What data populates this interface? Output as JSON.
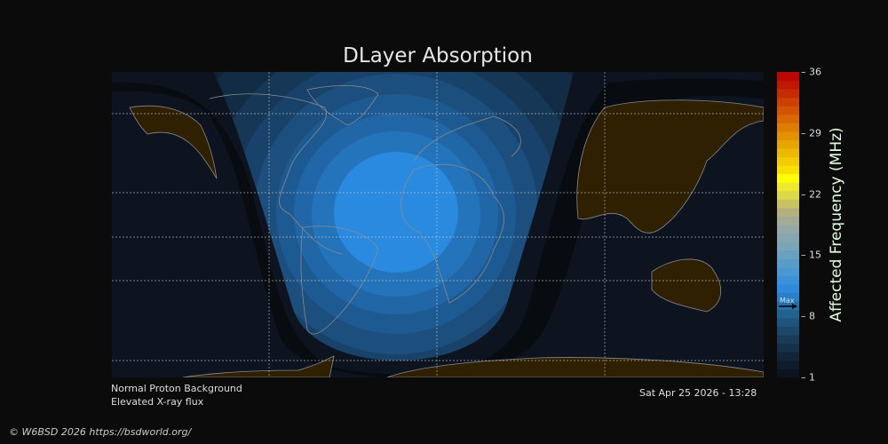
{
  "title": "DLayer Absorption",
  "colorbar": {
    "label": "Affected Frequency (MHz)",
    "ticks": [
      "1",
      "8",
      "15",
      "22",
      "29",
      "36"
    ],
    "min": 1,
    "max": 36,
    "max_marker_label": "Max",
    "max_marker_value": 9.3,
    "colors": [
      "#0d1420",
      "#101c2c",
      "#132638",
      "#163046",
      "#193b56",
      "#1c4768",
      "#1f557c",
      "#22628f",
      "#2570a8",
      "#2a80c8",
      "#2d8ade",
      "#3a92d8",
      "#4a98d0",
      "#5a9cc8",
      "#6aa0c0",
      "#7aa4b8",
      "#88a6b0",
      "#96a8a6",
      "#a4aa96",
      "#b4b07e",
      "#c8c262",
      "#dcd84a",
      "#eee830",
      "#ffff00",
      "#f8e000",
      "#f2cc00",
      "#ecb800",
      "#e6a400",
      "#e29000",
      "#de7c00",
      "#d86800",
      "#d25400",
      "#cc4000",
      "#c42c00",
      "#be1800",
      "#b80800"
    ]
  },
  "status": {
    "proton": "Normal Proton Background",
    "xray": "Elevated X-ray flux"
  },
  "timestamp": "Sat Apr 25 2026 - 13:28",
  "copyright": "© W6BSD 2026 https://bsdworld.org/",
  "colors": {
    "background": "#0b0b0b",
    "night": "#0d1420",
    "land_night": "#2e2000",
    "coast": "#8a8a8a"
  }
}
